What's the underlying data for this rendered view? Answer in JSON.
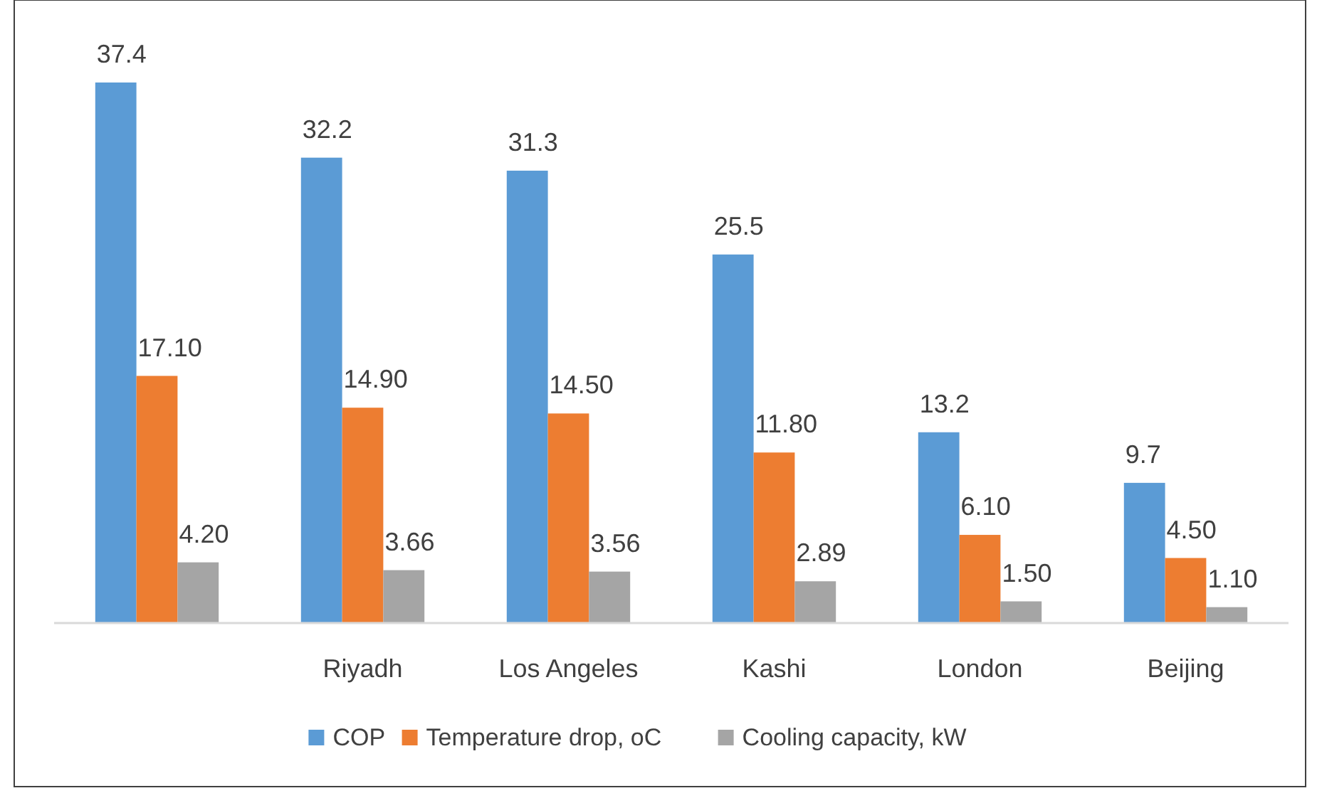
{
  "chart_data": {
    "type": "bar",
    "categories": [
      null,
      "Riyadh",
      "Los Angeles",
      "Kashi",
      "London",
      "Beijing"
    ],
    "series": [
      {
        "name": "COP",
        "color": "#5b9bd5",
        "values": [
          37.4,
          32.2,
          31.3,
          25.5,
          13.2,
          9.7
        ],
        "value_labels": [
          "37.4",
          "32.2",
          "31.3",
          "25.5",
          "13.2",
          "9.7"
        ]
      },
      {
        "name": "Temperature drop, oC",
        "color": "#ed7d31",
        "values": [
          17.1,
          14.9,
          14.5,
          11.8,
          6.1,
          4.5
        ],
        "value_labels": [
          "17.10",
          "14.90",
          "14.50",
          "11.80",
          "6.10",
          "4.50"
        ]
      },
      {
        "name": "Cooling capacity, kW",
        "color": "#a5a5a5",
        "values": [
          4.2,
          3.66,
          3.56,
          2.89,
          1.5,
          1.1
        ],
        "value_labels": [
          "4.20",
          "3.66",
          "3.56",
          "2.89",
          "1.50",
          "1.10"
        ]
      }
    ],
    "legend": "bottom"
  }
}
